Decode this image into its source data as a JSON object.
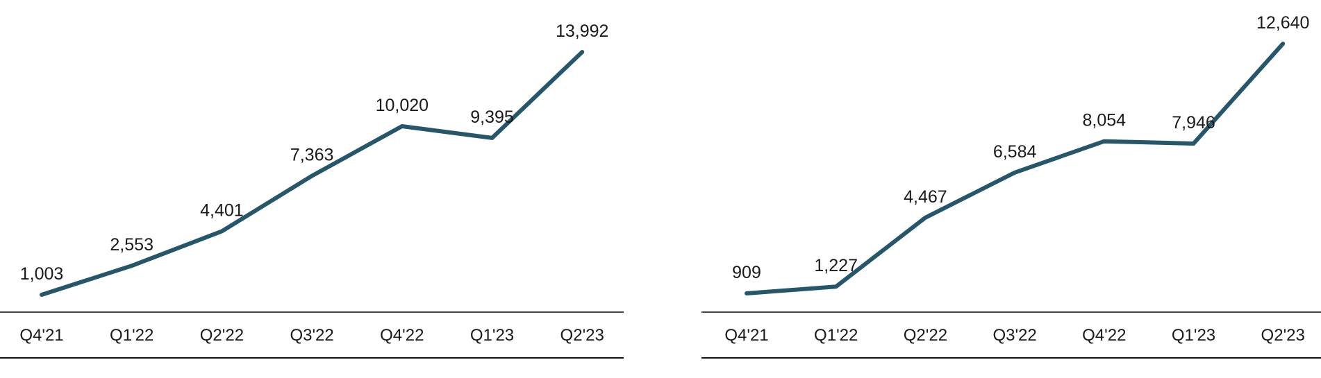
{
  "chart_data": [
    {
      "type": "line",
      "categories": [
        "Q4'21",
        "Q1'22",
        "Q2'22",
        "Q3'22",
        "Q4'22",
        "Q1'23",
        "Q2'23"
      ],
      "series": [
        {
          "values": [
            1003,
            2553,
            4401,
            7363,
            10020,
            9395,
            13992
          ],
          "labels": [
            "1,003",
            "2,553",
            "4,401",
            "7,363",
            "10,020",
            "9,395",
            "13,992"
          ]
        }
      ],
      "title": "",
      "xlabel": "",
      "ylabel": "",
      "ylim": [
        0,
        15000
      ],
      "grid": false,
      "line_color": "#26566a",
      "axis_color": "#444444"
    },
    {
      "type": "line",
      "categories": [
        "Q4'21",
        "Q1'22",
        "Q2'22",
        "Q3'22",
        "Q4'22",
        "Q1'23",
        "Q2'23"
      ],
      "series": [
        {
          "values": [
            909,
            1227,
            4467,
            6584,
            8054,
            7946,
            12640
          ],
          "labels": [
            "909",
            "1,227",
            "4,467",
            "6,584",
            "8,054",
            "7,946",
            "12,640"
          ]
        }
      ],
      "title": "",
      "xlabel": "",
      "ylabel": "",
      "ylim": [
        0,
        13500
      ],
      "grid": false,
      "line_color": "#26566a",
      "axis_color": "#444444"
    }
  ]
}
